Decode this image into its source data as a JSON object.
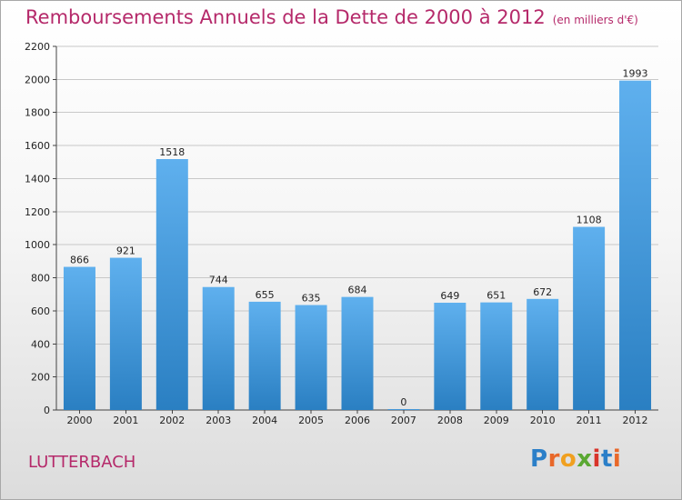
{
  "title": "Remboursements Annuels de la Dette de 2000 à 2012",
  "subtitle": "(en milliers d'€)",
  "city": "LUTTERBACH",
  "brand": {
    "letters": [
      {
        "ch": "P",
        "color": "#2b7fc8"
      },
      {
        "ch": "r",
        "color": "#e8682a"
      },
      {
        "ch": "o",
        "color": "#f0a020"
      },
      {
        "ch": "x",
        "color": "#5aa832"
      },
      {
        "ch": "i",
        "color": "#d8342a"
      },
      {
        "ch": "t",
        "color": "#2b7fc8"
      },
      {
        "ch": "i",
        "color": "#e8682a"
      }
    ]
  },
  "colors": {
    "title": "#b5296a",
    "bar_top": "#5fb0ee",
    "bar_bottom": "#2a7fc2",
    "axis": "#444444",
    "grid": "#c8c8c8"
  },
  "chart_data": {
    "type": "bar",
    "title": "Remboursements Annuels de la Dette de 2000 à 2012",
    "subtitle": "(en milliers d'€)",
    "categories": [
      "2000",
      "2001",
      "2002",
      "2003",
      "2004",
      "2005",
      "2006",
      "2007",
      "2008",
      "2009",
      "2010",
      "2011",
      "2012"
    ],
    "values": [
      866,
      921,
      1518,
      744,
      655,
      635,
      684,
      0,
      649,
      651,
      672,
      1108,
      1993
    ],
    "ylim": [
      0,
      2200
    ],
    "yticks": [
      0,
      200,
      400,
      600,
      800,
      1000,
      1200,
      1400,
      1600,
      1800,
      2000,
      2200
    ],
    "grid": true,
    "xlabel": "",
    "ylabel": ""
  }
}
